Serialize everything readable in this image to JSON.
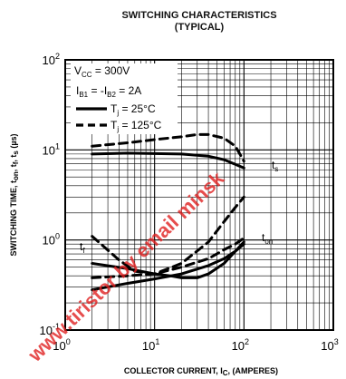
{
  "chart_data": {
    "type": "line",
    "title": "SWITCHING CHARACTERISTICS",
    "subtitle": "(TYPICAL)",
    "xlabel": "COLLECTOR CURRENT, I",
    "xlabel_sub": "C",
    "xlabel_tail": ", (AMPERES)",
    "ylabel": "SWITCHING TIME, t",
    "ylabel_subs": [
      "on",
      "f",
      "s"
    ],
    "ylabel_tail": " (µs)",
    "xscale": "log",
    "yscale": "log",
    "xlim": [
      1,
      1000
    ],
    "ylim": [
      0.1,
      100
    ],
    "x_ticks": [
      {
        "base": "10",
        "exp": "0"
      },
      {
        "base": "10",
        "exp": "1"
      },
      {
        "base": "10",
        "exp": "2"
      },
      {
        "base": "10",
        "exp": "3"
      }
    ],
    "y_ticks": [
      {
        "base": "10",
        "exp": "-1"
      },
      {
        "base": "10",
        "exp": "0"
      },
      {
        "base": "10",
        "exp": "1"
      },
      {
        "base": "10",
        "exp": "2"
      }
    ],
    "grid": true,
    "conditions": [
      {
        "text": "V",
        "sub": "CC",
        "tail": " = 300V"
      },
      {
        "text": "I",
        "sub": "B1",
        "tail": " = -I",
        "sub2": "B2",
        "tail2": " = 2A"
      }
    ],
    "legend_entries": [
      {
        "text": "T",
        "sub": "j",
        "tail": " = 25°C",
        "style": "solid"
      },
      {
        "text": "T",
        "sub": "j",
        "tail": " = 125°C",
        "style": "dashed"
      }
    ],
    "series": [
      {
        "label": "t",
        "label_sub": "s",
        "style": "solid",
        "points": [
          [
            2,
            9
          ],
          [
            5,
            9.2
          ],
          [
            10,
            9.1
          ],
          [
            20,
            9
          ],
          [
            40,
            8.5
          ],
          [
            60,
            7.8
          ],
          [
            80,
            6.9
          ],
          [
            100,
            6.3
          ]
        ]
      },
      {
        "label": "t",
        "label_sub": "s",
        "style": "dashed",
        "points": [
          [
            2,
            11
          ],
          [
            5,
            12
          ],
          [
            10,
            13
          ],
          [
            20,
            14
          ],
          [
            30,
            14.8
          ],
          [
            40,
            14.8
          ],
          [
            60,
            13.5
          ],
          [
            80,
            11
          ],
          [
            100,
            7.5
          ]
        ]
      },
      {
        "label": "t",
        "label_sub": "on",
        "style": "solid",
        "points": [
          [
            2,
            0.28
          ],
          [
            5,
            0.33
          ],
          [
            10,
            0.37
          ],
          [
            20,
            0.42
          ],
          [
            40,
            0.52
          ],
          [
            60,
            0.62
          ],
          [
            80,
            0.75
          ],
          [
            100,
            0.9
          ]
        ]
      },
      {
        "label": "t",
        "label_sub": "on",
        "style": "dashed",
        "points": [
          [
            2,
            0.38
          ],
          [
            5,
            0.4
          ],
          [
            10,
            0.42
          ],
          [
            20,
            0.5
          ],
          [
            40,
            0.62
          ],
          [
            60,
            0.78
          ],
          [
            80,
            0.9
          ],
          [
            100,
            1.05
          ]
        ]
      },
      {
        "label": "t",
        "label_sub": "f",
        "style": "solid",
        "points": [
          [
            2,
            0.55
          ],
          [
            5,
            0.48
          ],
          [
            10,
            0.42
          ],
          [
            15,
            0.4
          ],
          [
            20,
            0.38
          ],
          [
            30,
            0.38
          ],
          [
            40,
            0.42
          ],
          [
            60,
            0.55
          ],
          [
            80,
            0.75
          ],
          [
            100,
            0.95
          ]
        ]
      },
      {
        "label": "t",
        "label_sub": "f",
        "style": "dashed",
        "points": [
          [
            2,
            1.1
          ],
          [
            4,
            0.6
          ],
          [
            6,
            0.45
          ],
          [
            10,
            0.42
          ],
          [
            20,
            0.55
          ],
          [
            40,
            0.95
          ],
          [
            60,
            1.6
          ],
          [
            80,
            2.3
          ],
          [
            100,
            3
          ]
        ]
      }
    ],
    "watermark": "www.tiristor by email minsk"
  }
}
